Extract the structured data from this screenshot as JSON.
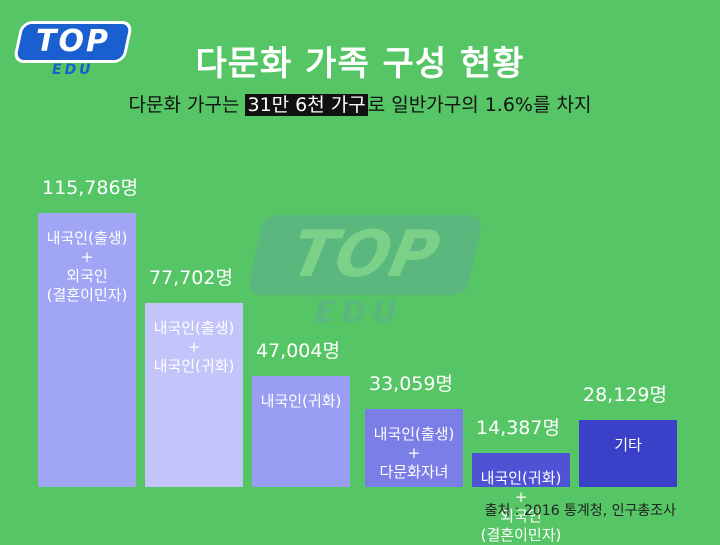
{
  "logo": {
    "main": "TOP",
    "sub": "EDU"
  },
  "title": "다문화 가족 구성 현황",
  "subtitle": {
    "pre": "다문화 가구는 ",
    "highlight": "31만 6천 가구",
    "post": "로 일반가구의 1.6%를 차지"
  },
  "source": "출처 : 2016 통계청, 인구총조사",
  "chart_data": {
    "type": "bar",
    "unit": "명",
    "categories": [
      "내국인(출생)\n+\n외국인\n(결혼이민자)",
      "내국인(출생)\n+\n내국인(귀화)",
      "내국인(귀화)",
      "내국인(출생)\n+\n다문화자녀",
      "내국인(귀화)\n+\n외국인\n(결혼이민자)",
      "기타"
    ],
    "values": [
      115786,
      77702,
      47004,
      33059,
      14387,
      28129
    ],
    "value_labels": [
      "115,786명",
      "77,702명",
      "47,004명",
      "33,059명",
      "14,387명",
      "28,129명"
    ],
    "colors": [
      "#a0a5f4",
      "#c2c4fa",
      "#9a9ef2",
      "#7a7ee6",
      "#4e53d6",
      "#3a40c8"
    ]
  }
}
